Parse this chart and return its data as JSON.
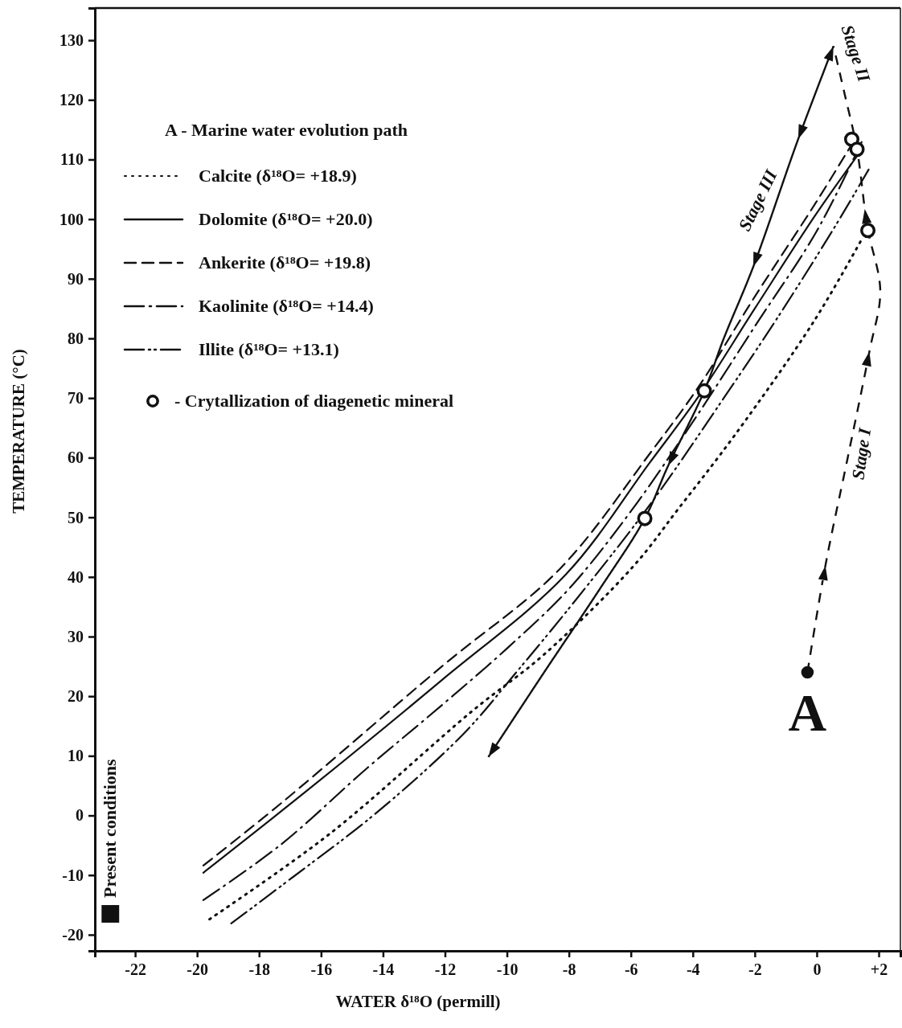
{
  "chart_data": {
    "type": "line",
    "xlabel": "WATER δ¹⁸O (permill)",
    "ylabel": "TEMPERATURE (°C)",
    "legend_title": "A - Marine water evolution path",
    "legend": "top left",
    "grid": false,
    "xlim": [
      -23.3,
      2.7
    ],
    "ylim": [
      -22.7,
      135.4
    ],
    "xticks": [
      -22,
      -20,
      -18,
      -16,
      -14,
      -12,
      -10,
      -8,
      -6,
      -4,
      -2,
      0,
      {
        "value": 2,
        "label": "+2"
      }
    ],
    "yticks": [
      -20,
      -10,
      0,
      10,
      20,
      30,
      40,
      50,
      60,
      70,
      80,
      90,
      100,
      110,
      120,
      130
    ],
    "series": [
      {
        "name": "Calcite (δ¹⁸O= +18.9)",
        "line_style": "dotted",
        "color": "#111111",
        "x": [
          -19.6,
          -15.7,
          -11.1,
          -8.8,
          -5.9,
          -4.5,
          -2.6,
          -0.1,
          1.45
        ],
        "values": [
          -17.4,
          -3.0,
          17.6,
          27,
          41.9,
          51.2,
          64.1,
          82.8,
          96.6
        ]
      },
      {
        "name": "Dolomite (δ¹⁸O= +20.0)",
        "line_style": "solid",
        "color": "#111111",
        "x": [
          -19.8,
          -16.3,
          -12.1,
          -8.1,
          -5.4,
          -3.8,
          -2,
          0,
          1.5
        ],
        "values": [
          -9.6,
          4.8,
          22.7,
          40.4,
          59.1,
          70.4,
          85,
          101,
          112
        ]
      },
      {
        "name": "Ankerite (δ¹⁸O= +19.8)",
        "line_style": "dashed",
        "color": "#111111",
        "x": [
          -19.8,
          -17.3,
          -12.1,
          -8.3,
          -5.4,
          -3.8,
          -2,
          0,
          1.3
        ],
        "values": [
          -8.4,
          2.0,
          25,
          41.3,
          60.6,
          72,
          87,
          103,
          114
        ]
      },
      {
        "name": "Kaolinite (δ¹⁸O= +14.4)",
        "line_style": "dashdot",
        "color": "#111111",
        "x": [
          -19.8,
          -17.3,
          -14.5,
          -12.1,
          -10,
          -8,
          -6,
          -4,
          -2,
          0,
          1.5
        ],
        "values": [
          -14.2,
          -4.9,
          8,
          18.5,
          28,
          38,
          51,
          66,
          82,
          98,
          113.5
        ]
      },
      {
        "name": "Illite (δ¹⁸O= +13.1)",
        "line_style": "dashdotdot",
        "color": "#111111",
        "x": [
          -18.9,
          -16.9,
          -14.2,
          -11.4,
          -9.7,
          -7.8,
          -5.4,
          -3,
          -1.35,
          0.5,
          1.73
        ],
        "values": [
          -18.1,
          -10.3,
          0.5,
          13.7,
          24,
          36,
          52,
          70,
          82.8,
          98,
          108.8
        ]
      },
      {
        "name": "- Crytallization of diagenetic mineral",
        "type": "scatter",
        "marker": "circle",
        "color": "#111111",
        "x": [
          1.13,
          1.3,
          1.65,
          -3.63,
          -5.55
        ],
        "values": [
          113.4,
          111.7,
          98.1,
          71.2,
          49.8
        ]
      },
      {
        "name": "A",
        "type": "scatter",
        "marker": "circle",
        "color": "#111111",
        "x": [
          -0.3
        ],
        "values": [
          24
        ]
      },
      {
        "name": "Present conditions",
        "type": "scatter",
        "marker": "square",
        "color": "#111111",
        "x": [
          -22.8
        ],
        "values": [
          -16.5
        ]
      }
    ],
    "annotations": [
      "Stage I",
      "Stage II",
      "Stage III"
    ]
  }
}
